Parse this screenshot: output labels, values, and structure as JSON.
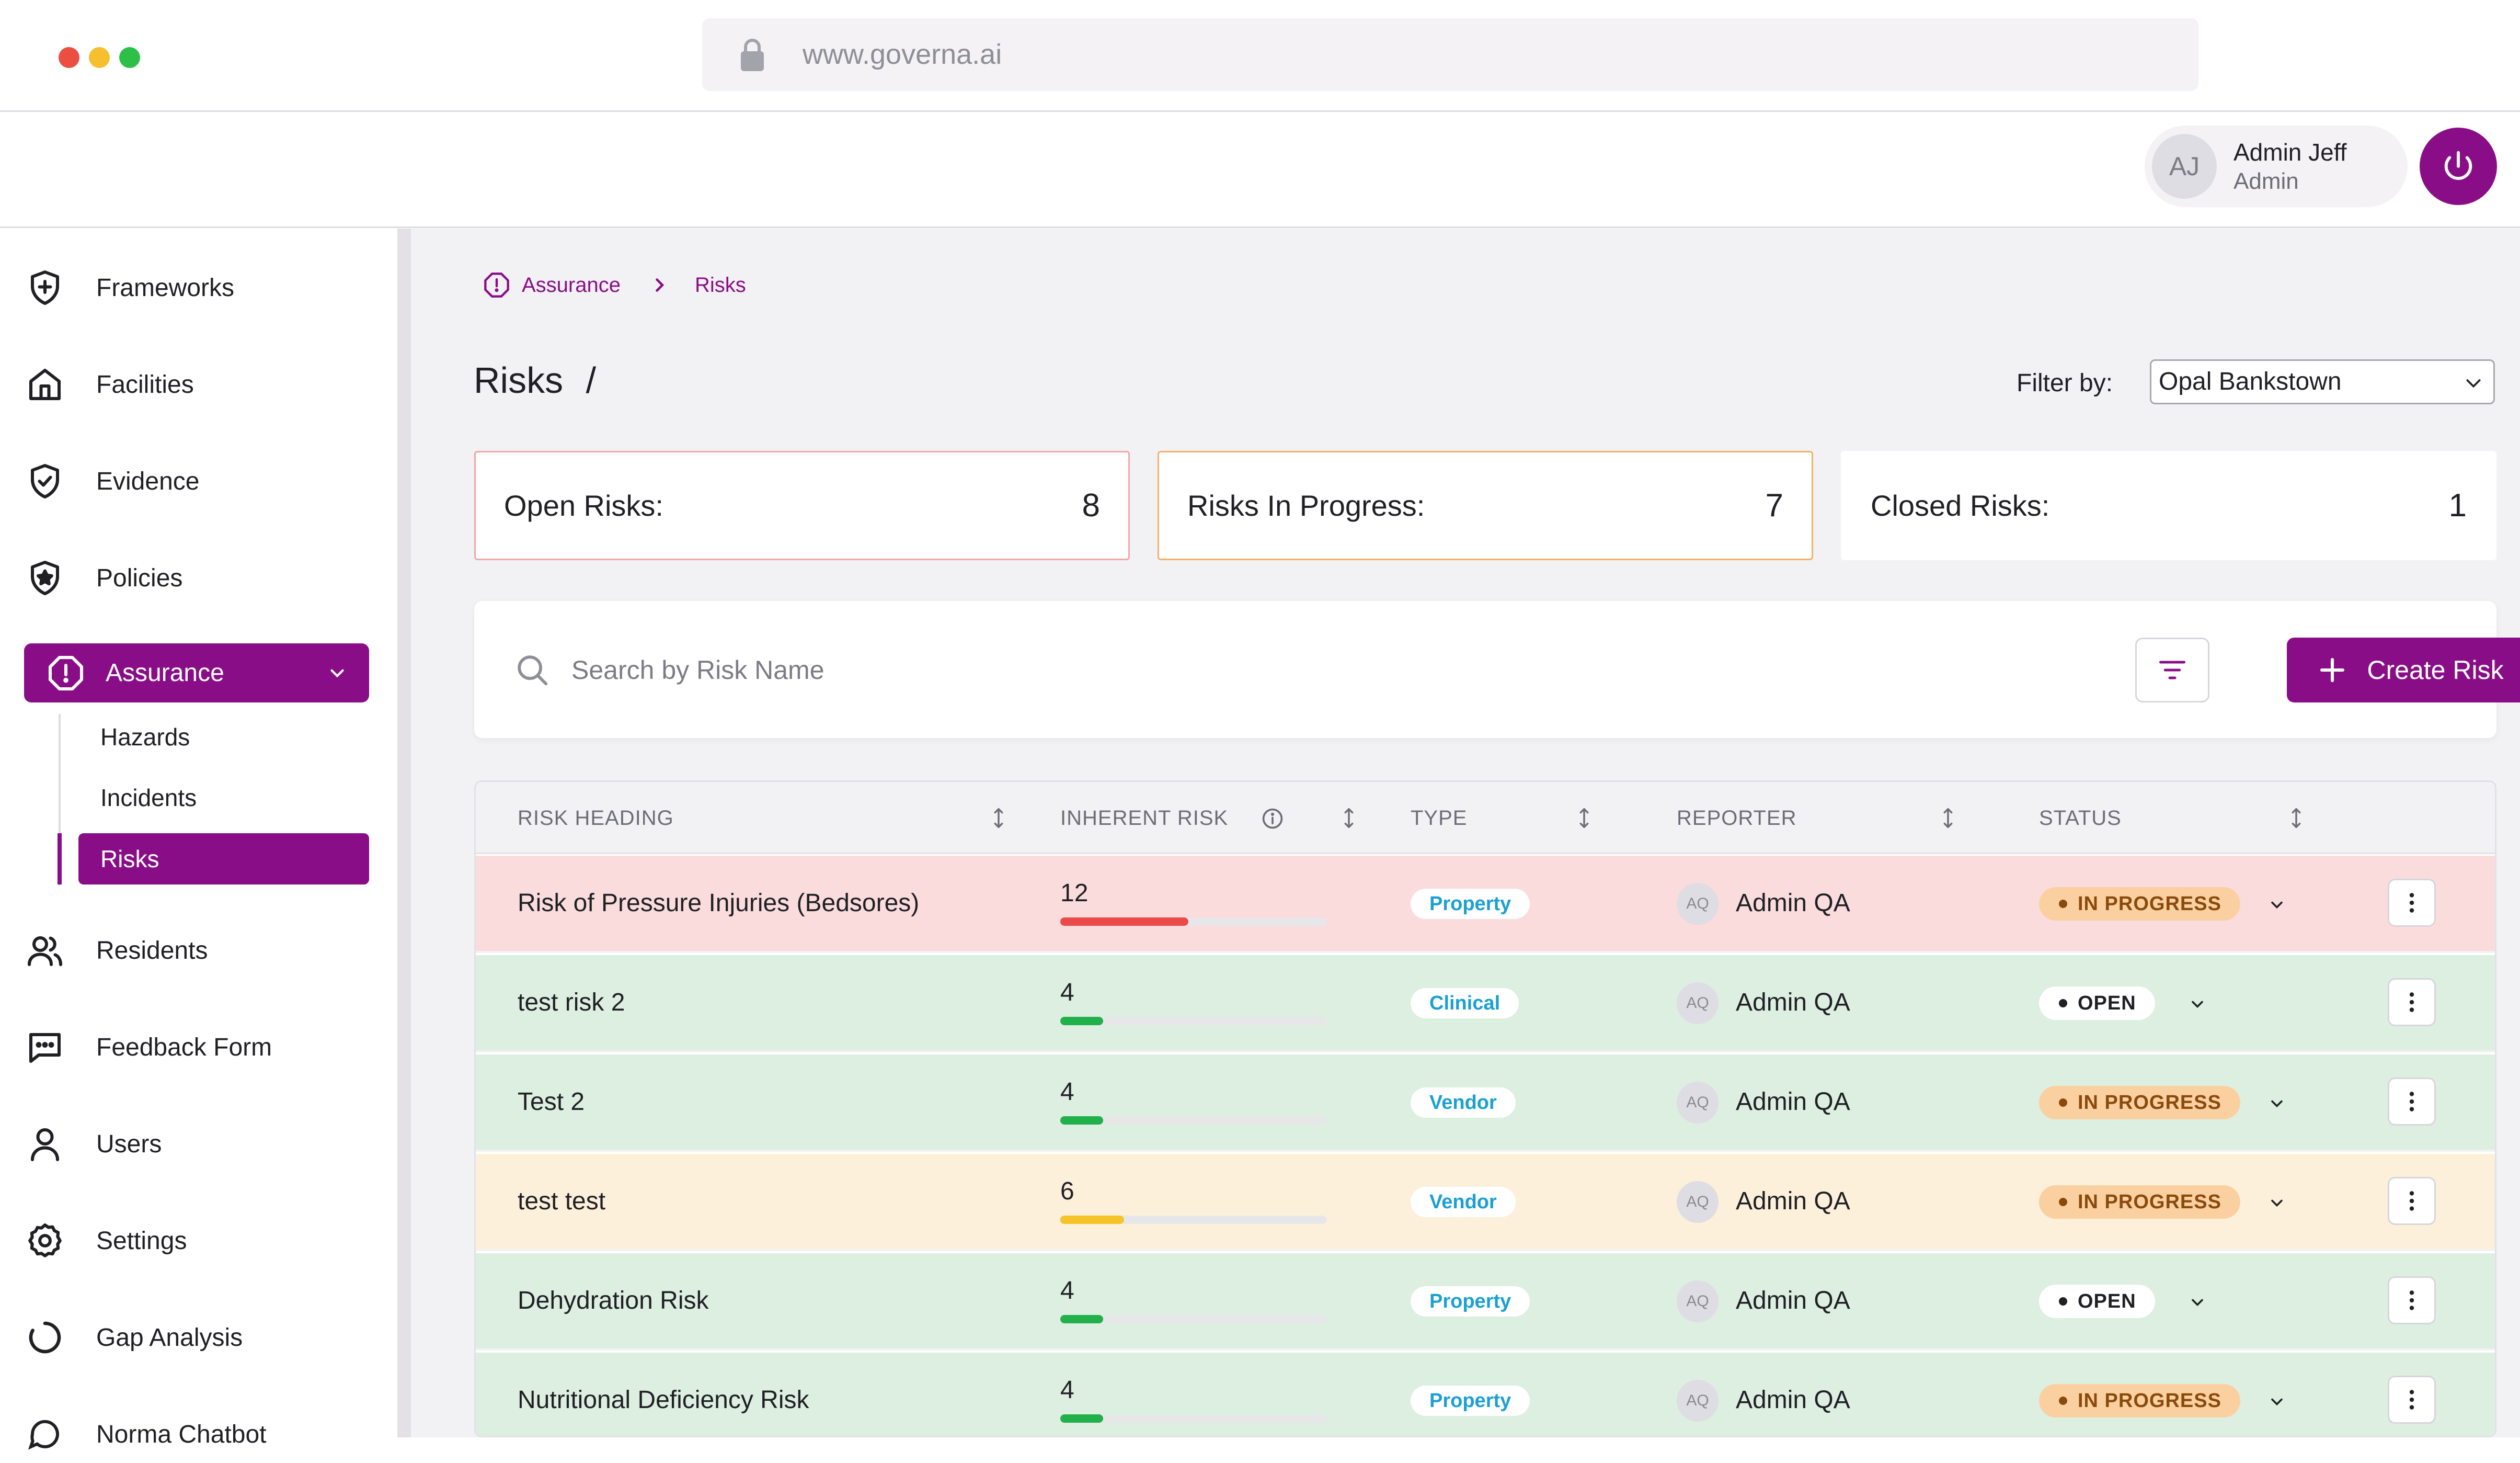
{
  "browser": {
    "url": "www.governa.ai",
    "dots": [
      "#ea4f42",
      "#f5bf30",
      "#2ebf48"
    ]
  },
  "header": {
    "user_initials": "AJ",
    "user_name": "Admin Jeff",
    "user_role": "Admin"
  },
  "sidebar": {
    "items": [
      {
        "label": "Frameworks",
        "icon": "shield-plus-icon"
      },
      {
        "label": "Facilities",
        "icon": "home-icon"
      },
      {
        "label": "Evidence",
        "icon": "shield-check-icon"
      },
      {
        "label": "Policies",
        "icon": "shield-star-icon"
      }
    ],
    "active": {
      "label": "Assurance",
      "icon": "alert-octagon-icon"
    },
    "subitems": [
      "Hazards",
      "Incidents",
      "Risks"
    ],
    "items_after": [
      {
        "label": "Residents",
        "icon": "users-icon"
      },
      {
        "label": "Feedback Form",
        "icon": "message-square-icon"
      },
      {
        "label": "Users",
        "icon": "user-icon"
      },
      {
        "label": "Settings",
        "icon": "settings-icon"
      },
      {
        "label": "Gap Analysis",
        "icon": "loader-circle-icon"
      },
      {
        "label": "Norma Chatbot",
        "icon": "chat-icon"
      }
    ]
  },
  "breadcrumb": {
    "parent": "Assurance",
    "current": "Risks"
  },
  "page": {
    "title": "Risks",
    "separator": "/"
  },
  "filter": {
    "label": "Filter by:",
    "value": "Opal Bankstown"
  },
  "stats": {
    "open": {
      "label": "Open Risks:",
      "value": "8"
    },
    "in_progress": {
      "label": "Risks In Progress:",
      "value": "7"
    },
    "closed": {
      "label": "Closed Risks:",
      "value": "1"
    }
  },
  "search": {
    "placeholder": "Search by Risk Name"
  },
  "create_button": "Create Risk",
  "table": {
    "columns": {
      "heading": "RISK HEADING",
      "inherent": "INHERENT RISK",
      "type": "TYPE",
      "reporter": "REPORTER",
      "status": "STATUS"
    },
    "rows": [
      {
        "heading": "Risk of Pressure Injuries (Bedsores)",
        "score": "12",
        "level": 0.48,
        "bar_color": "#ea4a4a",
        "bg": "#fadcdd",
        "type": "Property",
        "reporter_initials": "AQ",
        "reporter": "Admin QA",
        "status": "IN PROGRESS"
      },
      {
        "heading": "test risk 2",
        "score": "4",
        "level": 0.16,
        "bar_color": "#22b04b",
        "bg": "#dcefe1",
        "type": "Clinical",
        "reporter_initials": "AQ",
        "reporter": "Admin QA",
        "status": "OPEN"
      },
      {
        "heading": "Test 2",
        "score": "4",
        "level": 0.16,
        "bar_color": "#22b04b",
        "bg": "#dcefe1",
        "type": "Vendor",
        "reporter_initials": "AQ",
        "reporter": "Admin QA",
        "status": "IN PROGRESS"
      },
      {
        "heading": "test test",
        "score": "6",
        "level": 0.24,
        "bar_color": "#f5c32a",
        "bg": "#fdf0da",
        "type": "Vendor",
        "reporter_initials": "AQ",
        "reporter": "Admin QA",
        "status": "IN PROGRESS"
      },
      {
        "heading": "Dehydration Risk",
        "score": "4",
        "level": 0.16,
        "bar_color": "#22b04b",
        "bg": "#dcefe1",
        "type": "Property",
        "reporter_initials": "AQ",
        "reporter": "Admin QA",
        "status": "OPEN"
      },
      {
        "heading": "Nutritional Deficiency Risk",
        "score": "4",
        "level": 0.16,
        "bar_color": "#22b04b",
        "bg": "#dcefe1",
        "type": "Property",
        "reporter_initials": "AQ",
        "reporter": "Admin QA",
        "status": "IN PROGRESS"
      }
    ]
  },
  "colors": {
    "accent": "#8a0d88"
  }
}
